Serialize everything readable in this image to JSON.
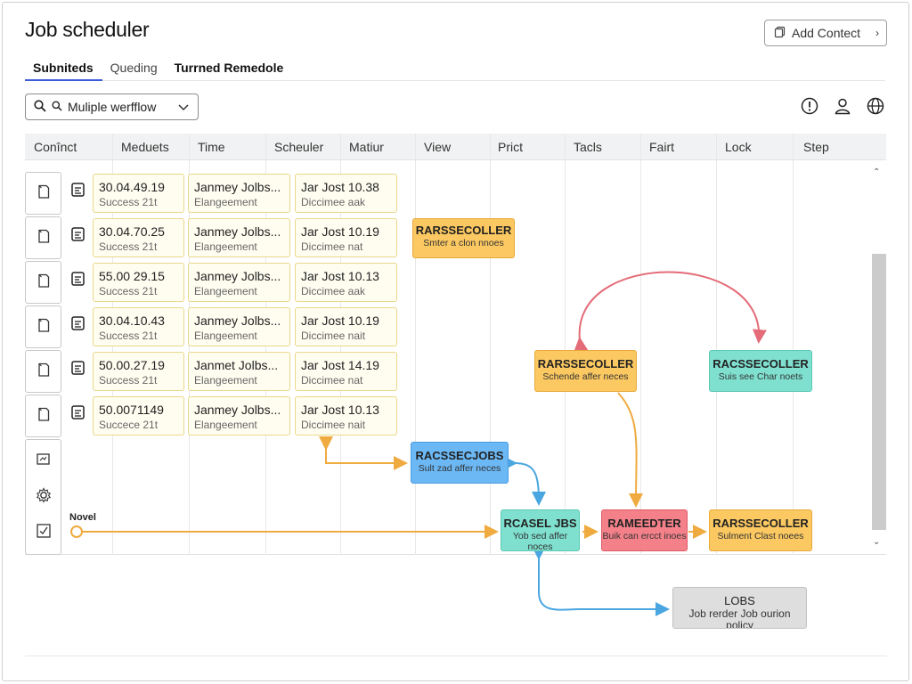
{
  "app": {
    "title": "Job scheduler",
    "add_button": "Add Contect"
  },
  "tabs": [
    {
      "label": "Subniteds",
      "active": true
    },
    {
      "label": "Queding",
      "active": false
    },
    {
      "label": "Turrned Remedole",
      "active": false
    }
  ],
  "search": {
    "value": "Muliple werfflow"
  },
  "top_icons": [
    "alert-icon",
    "user-icon",
    "globe-icon"
  ],
  "columns": [
    "Conînct",
    "Meduets",
    "Time",
    "Scheuler",
    "Matiur",
    "View",
    "Prict",
    "Tacls",
    "Fairt",
    "Lock",
    "Step"
  ],
  "rows": [
    {
      "meduets": {
        "l1": "30.04.49.19",
        "l2": "Success 21t"
      },
      "time": {
        "l1": "Janmey Jolbs...",
        "l2": "Elangeement"
      },
      "scheuler": {
        "l1": "Jar Jost 10.38",
        "l2": "Diccimee aak"
      }
    },
    {
      "meduets": {
        "l1": "30.04.70.25",
        "l2": "Success 21t"
      },
      "time": {
        "l1": "Janmey Jolbs...",
        "l2": "Elangeement"
      },
      "scheuler": {
        "l1": "Jar Jost 10.19",
        "l2": "Diccimee nat"
      }
    },
    {
      "meduets": {
        "l1": "55.00 29.15",
        "l2": "Success 21t"
      },
      "time": {
        "l1": "Janmey Jolbs...",
        "l2": "Elangeement"
      },
      "scheuler": {
        "l1": "Jar Jost 10.13",
        "l2": "Diccimee aak"
      }
    },
    {
      "meduets": {
        "l1": "30.04.10.43",
        "l2": "Success 21t"
      },
      "time": {
        "l1": "Janmey Jolbs...",
        "l2": "Elangeement"
      },
      "scheuler": {
        "l1": "Jar Jost 10.19",
        "l2": "Diccimee nait"
      }
    },
    {
      "meduets": {
        "l1": "50.00.27.19",
        "l2": "Success 21t"
      },
      "time": {
        "l1": "Janmet Jolbs...",
        "l2": "Elangeement"
      },
      "scheuler": {
        "l1": "Jar Jost 14.19",
        "l2": "Diccimee nat"
      }
    },
    {
      "meduets": {
        "l1": "50.0071149",
        "l2": "Succece 21t"
      },
      "time": {
        "l1": "Janmey Jolbs...",
        "l2": "Elangeement"
      },
      "scheuler": {
        "l1": "Jar Jost 10.13",
        "l2": "Diccimee nait"
      }
    }
  ],
  "nodes": {
    "n1": {
      "title": "RARSSECOLLER",
      "sub": "Smter a clon nnoes",
      "color": "#fbc861"
    },
    "n2": {
      "title": "RARSSECOLLER",
      "sub": "Schende affer neces",
      "color": "#fbc861"
    },
    "n3": {
      "title": "RACSSECOLLER",
      "sub": "Suis see Char noets",
      "color": "#7fe0cf"
    },
    "n4": {
      "title": "RACSSECJOBS",
      "sub": "Sult zad affer neces",
      "color": "#6bb8f5"
    },
    "n5": {
      "title": "RCASEL JBS",
      "sub": "Yob sed affer noces",
      "color": "#7fe0cf"
    },
    "n6": {
      "title": "RAMEEDTER",
      "sub": "Buik can ercct inoes",
      "color": "#f4818a"
    },
    "n7": {
      "title": "RARSSECOLLER",
      "sub": "Sulment Clast noees",
      "color": "#fbc861"
    },
    "n8": {
      "title": "LOBS",
      "sub": "Job rerder Job ourion policy",
      "color": "#dedede"
    }
  },
  "novel_label": "Novel"
}
